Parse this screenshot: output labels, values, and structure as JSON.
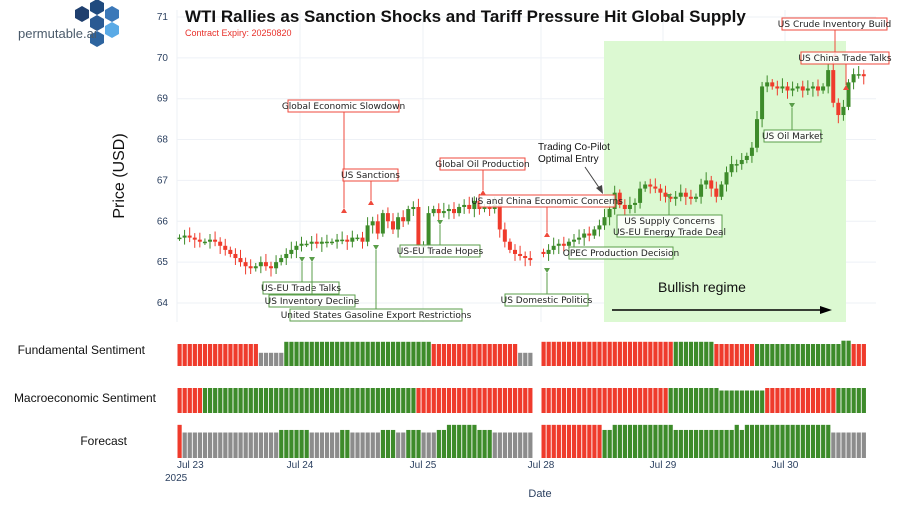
{
  "logo": {
    "text": "permutable.ai"
  },
  "chart_data": {
    "type": "candlestick",
    "title": "WTI Rallies as Sanction Shocks and Tariff Pressure Hit Global Supply",
    "subtitle": "Contract Expiry: 20250820",
    "ylabel": "Price (USD)",
    "xlabel": "Date",
    "ylim": [
      64,
      71
    ],
    "yticks": [
      "71",
      "70",
      "69",
      "68",
      "67",
      "66",
      "65",
      "64"
    ],
    "xticks": [
      "Jul 23",
      "Jul 24",
      "Jul 25",
      "Jul 28",
      "Jul 29",
      "Jul 30"
    ],
    "xtick_year": "2025",
    "grid": true,
    "colors": {
      "up": "#3d8b2a",
      "down": "#ef3b2c",
      "neutral": "#8c8c8c",
      "regime": "#dcf9d2"
    },
    "segments": [
      {
        "start": "Jul 23",
        "close": [
          65.6,
          65.65,
          65.6,
          65.55,
          65.5,
          65.5,
          65.55,
          65.5,
          65.4,
          65.3,
          65.2,
          65.1,
          65.0,
          64.9,
          64.85,
          64.9,
          65.0,
          64.9,
          64.85,
          65.0,
          65.1,
          65.2,
          65.3,
          65.4,
          65.45,
          65.45,
          65.5,
          65.45,
          65.5,
          65.5,
          65.5,
          65.55,
          65.55,
          65.5,
          65.6,
          65.6,
          65.5,
          65.9,
          66.0,
          65.7,
          66.2,
          66.0,
          65.8,
          66.1,
          66.0,
          66.3,
          66.35,
          65.4,
          65.4,
          66.2,
          66.3,
          66.2,
          66.25,
          66.3,
          66.2,
          66.35,
          66.4,
          66.3,
          66.5,
          66.3,
          66.35,
          66.3,
          66.4,
          65.8,
          65.5,
          65.3,
          65.2,
          65.15,
          65.1,
          65.05
        ]
      },
      {
        "start": "Jul 28",
        "close": [
          65.2,
          65.3,
          65.4,
          65.45,
          65.4,
          65.5,
          65.55,
          65.6,
          65.7,
          65.65,
          65.8,
          65.9,
          66.1,
          66.3,
          66.7,
          66.4,
          66.3,
          66.4,
          66.45,
          66.8,
          66.9,
          66.85,
          66.8,
          66.7,
          66.6,
          66.55,
          66.6,
          66.7,
          66.6,
          66.55,
          66.6,
          66.9,
          67.0,
          66.8,
          66.6,
          66.9,
          67.2,
          67.4,
          67.4,
          67.5,
          67.6,
          67.8,
          68.5,
          69.3,
          69.4,
          69.3,
          69.25,
          69.3,
          69.2,
          69.25,
          69.3,
          69.2,
          69.25,
          69.3,
          69.2,
          69.3,
          69.7,
          68.9,
          68.6,
          68.8,
          69.4,
          69.6,
          69.6,
          69.55
        ]
      }
    ],
    "regime": {
      "label": "Bullish regime",
      "from": "Jul 28",
      "to": "Jul 30"
    },
    "entry_note": {
      "lines": [
        "Trading Co-Pilot",
        "Optimal Entry"
      ]
    },
    "annotations": [
      {
        "text": "Global Economic Slowdown",
        "sentiment": "negative"
      },
      {
        "text": "US Sanctions",
        "sentiment": "negative"
      },
      {
        "text": "Global Oil Production",
        "sentiment": "negative"
      },
      {
        "text": "US and China Economic Concerns",
        "sentiment": "negative"
      },
      {
        "text": "US-EU Trade Talks",
        "sentiment": "positive"
      },
      {
        "text": "US Inventory Decline",
        "sentiment": "positive"
      },
      {
        "text": "United States Gasoline Export Restrictions",
        "sentiment": "positive"
      },
      {
        "text": "US-EU Trade Hopes",
        "sentiment": "positive"
      },
      {
        "text": "US Domestic Politics",
        "sentiment": "positive"
      },
      {
        "text": "OPEC Production Decision",
        "sentiment": "positive"
      },
      {
        "text": "US Supply Concerns",
        "sentiment": "positive"
      },
      {
        "text": "US-EU Energy Trade Deal",
        "sentiment": "positive"
      },
      {
        "text": "US Oil Market",
        "sentiment": "positive"
      },
      {
        "text": "US Crude Inventory Build",
        "sentiment": "negative"
      },
      {
        "text": "US China Trade Talks",
        "sentiment": "negative"
      }
    ],
    "sentiment_rows": [
      {
        "label": "Fundamental Sentiment",
        "runs": [
          [
            [
              "neg",
              1,
              16
            ],
            [
              "neu",
              0.6,
              5
            ],
            [
              "pos",
              1.1,
              29
            ],
            [
              "neg",
              1,
              17
            ],
            [
              "neu",
              0.6,
              3
            ]
          ],
          [
            [
              "neg",
              1.1,
              26
            ],
            [
              "pos",
              1.1,
              8
            ],
            [
              "neg",
              1,
              8
            ],
            [
              "pos",
              1,
              17
            ],
            [
              "pos",
              1.15,
              2
            ],
            [
              "neg",
              1,
              3
            ]
          ]
        ]
      },
      {
        "label": "Macroeconomic Sentiment",
        "runs": [
          [
            [
              "neg",
              1,
              5
            ],
            [
              "pos",
              1,
              42
            ],
            [
              "neg",
              1,
              23
            ]
          ],
          [
            [
              "neg",
              1,
              25
            ],
            [
              "pos",
              1,
              10
            ],
            [
              "pos",
              0.9,
              9
            ],
            [
              "neg",
              1,
              14
            ],
            [
              "pos",
              1,
              6
            ]
          ]
        ]
      },
      {
        "label": "Forecast",
        "runs": [
          [
            [
              "neg",
              1.3,
              1
            ],
            [
              "neu",
              1,
              19
            ],
            [
              "pos",
              1.1,
              6
            ],
            [
              "neu",
              1,
              6
            ],
            [
              "pos",
              1.1,
              2
            ],
            [
              "neu",
              1,
              6
            ],
            [
              "pos",
              1.1,
              3
            ],
            [
              "neu",
              1,
              2
            ],
            [
              "pos",
              1.1,
              3
            ],
            [
              "neu",
              1,
              3
            ],
            [
              "pos",
              1.1,
              2
            ],
            [
              "pos",
              1.3,
              6
            ],
            [
              "pos",
              1.1,
              3
            ],
            [
              "neu",
              1,
              8
            ]
          ],
          [
            [
              "neg",
              1.3,
              12
            ],
            [
              "pos",
              1.1,
              2
            ],
            [
              "pos",
              1.3,
              12
            ],
            [
              "pos",
              1.1,
              12
            ],
            [
              "pos",
              1.3,
              1
            ],
            [
              "pos",
              1.1,
              1
            ],
            [
              "pos",
              1.3,
              17
            ],
            [
              "neu",
              1,
              7
            ]
          ]
        ]
      }
    ]
  }
}
